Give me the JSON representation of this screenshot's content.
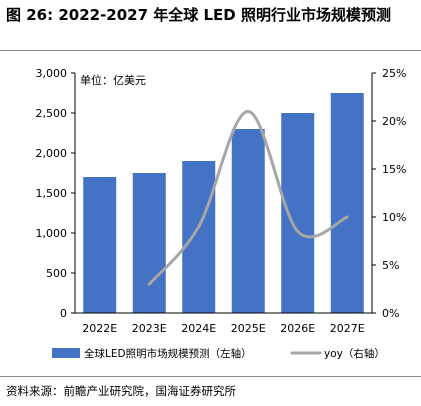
{
  "figure": {
    "title": "图 26: 2022-2027 年全球 LED 照明行业市场规模预测",
    "unit": "单位：亿美元",
    "source": "资料来源：前瞻产业研究院，国海证券研究所"
  },
  "chart_data": {
    "type": "bar",
    "categories": [
      "2022E",
      "2023E",
      "2024E",
      "2025E",
      "2026E",
      "2027E"
    ],
    "series": [
      {
        "name": "全球LED照明市场规模预测（左轴）",
        "type": "bar",
        "axis": "left",
        "values": [
          1700,
          1750,
          1900,
          2300,
          2500,
          2750
        ]
      },
      {
        "name": "yoy（右轴）",
        "type": "line",
        "axis": "right",
        "smooth": true,
        "values": [
          null,
          3,
          9,
          21,
          8.5,
          10
        ]
      }
    ],
    "y_left": {
      "min": 0,
      "max": 3000,
      "ticks": [
        "0",
        "500",
        "1,000",
        "1,500",
        "2,000",
        "2,500",
        "3,000"
      ]
    },
    "y_right": {
      "min": 0,
      "max": 25,
      "ticks": [
        "0%",
        "5%",
        "10%",
        "15%",
        "20%",
        "25%"
      ]
    },
    "legend_position": "bottom",
    "grid": false,
    "colors": {
      "bar": "#4472C4",
      "line": "#A6A6A6"
    }
  }
}
